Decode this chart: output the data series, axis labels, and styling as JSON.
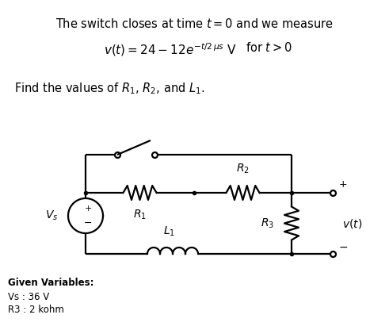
{
  "title_line1": "The switch closes at time $t = 0$ and we measure",
  "title_line2": "$v(t) = 24 - 12e^{-t/2\\,\\mu s}$ V     for $t > 0$",
  "find_text": "Find the values of $R_1$, $R_2$, and $L_1$.",
  "given_title": "Given Variables:",
  "given1": "Vs : 36 V",
  "given2": "R3 : 2 kohm",
  "bg_color": "#ffffff",
  "line_color": "#000000",
  "font_size_title": 10.5,
  "font_size_eq": 11,
  "font_size_find": 10.5,
  "font_size_label": 10,
  "font_size_given_title": 8.5,
  "font_size_given": 8.5
}
